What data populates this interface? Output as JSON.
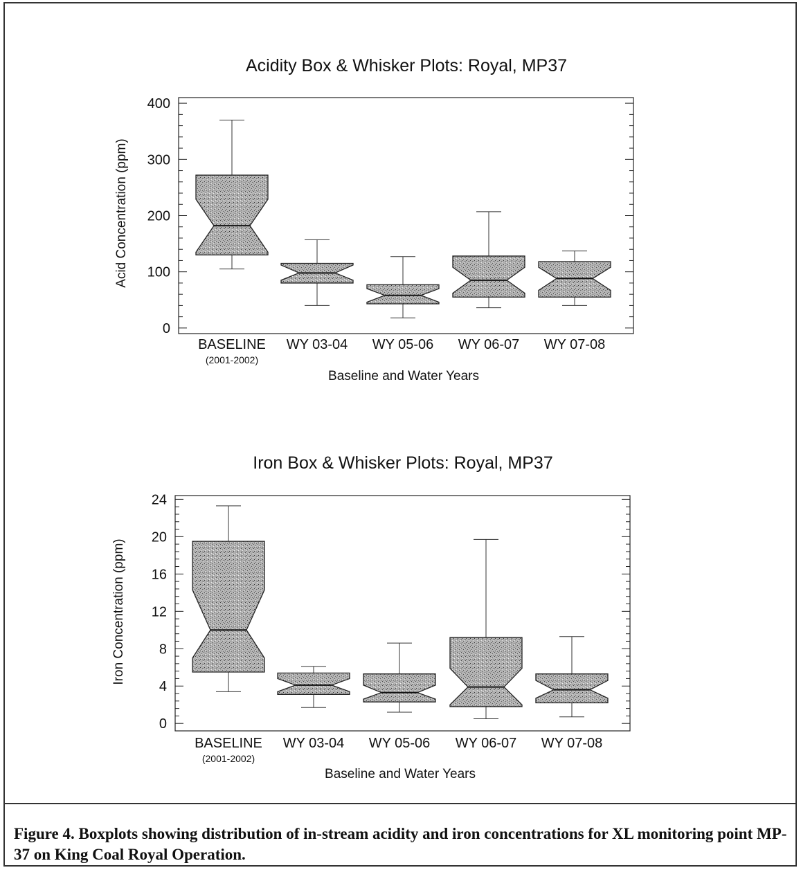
{
  "chart_data": [
    {
      "type": "boxplot",
      "title": "Acidity Box & Whisker Plots:  Royal, MP37",
      "xlabel": "Baseline and Water Years",
      "ylabel": "Acid Concentration (ppm)",
      "ylim": [
        -10,
        410
      ],
      "yticks": [
        0,
        100,
        200,
        300,
        400
      ],
      "categories": [
        "BASELINE",
        "WY 03-04",
        "WY 05-06",
        "WY 06-07",
        "WY 07-08"
      ],
      "category_sublabels": [
        "(2001-2002)",
        "",
        "",
        "",
        ""
      ],
      "boxes": [
        {
          "min": 105,
          "q1": 130,
          "median": 182,
          "q3": 272,
          "max": 370,
          "notch_low": 135,
          "notch_high": 229
        },
        {
          "min": 40,
          "q1": 80,
          "median": 98,
          "q3": 115,
          "max": 157,
          "notch_low": 85,
          "notch_high": 112
        },
        {
          "min": 18,
          "q1": 43,
          "median": 58,
          "q3": 77,
          "max": 127,
          "notch_low": 46,
          "notch_high": 70
        },
        {
          "min": 36,
          "q1": 55,
          "median": 85,
          "q3": 128,
          "max": 207,
          "notch_low": 62,
          "notch_high": 108
        },
        {
          "min": 40,
          "q1": 55,
          "median": 88,
          "q3": 118,
          "max": 137,
          "notch_low": 67,
          "notch_high": 108
        }
      ]
    },
    {
      "type": "boxplot",
      "title": "Iron Box & Whisker Plots:  Royal, MP37",
      "xlabel": "Baseline and Water Years",
      "ylabel": "Iron Concentration (ppm)",
      "ylim": [
        -0.8,
        24.4
      ],
      "yticks": [
        0,
        4,
        8,
        12,
        16,
        20,
        24
      ],
      "categories": [
        "BASELINE",
        "WY 03-04",
        "WY 05-06",
        "WY 06-07",
        "WY 07-08"
      ],
      "category_sublabels": [
        "(2001-2002)",
        "",
        "",
        "",
        ""
      ],
      "boxes": [
        {
          "min": 3.4,
          "q1": 5.5,
          "median": 10,
          "q3": 19.5,
          "max": 23.3,
          "notch_low": 7,
          "notch_high": 14.3
        },
        {
          "min": 1.7,
          "q1": 3.1,
          "median": 4.1,
          "q3": 5.4,
          "max": 6.1,
          "notch_low": 3.4,
          "notch_high": 4.8
        },
        {
          "min": 1.2,
          "q1": 2.3,
          "median": 3.3,
          "q3": 5.3,
          "max": 8.6,
          "notch_low": 2.6,
          "notch_high": 4.1
        },
        {
          "min": 0.5,
          "q1": 1.8,
          "median": 3.9,
          "q3": 9.2,
          "max": 19.7,
          "notch_low": 2,
          "notch_high": 5.9
        },
        {
          "min": 0.7,
          "q1": 2.2,
          "median": 3.6,
          "q3": 5.3,
          "max": 9.3,
          "notch_low": 2.7,
          "notch_high": 4.6
        }
      ]
    }
  ],
  "caption": "Figure 4.  Boxplots showing distribution of in-stream acidity and iron concentrations for XL monitoring point MP-37 on King Coal Royal Operation."
}
